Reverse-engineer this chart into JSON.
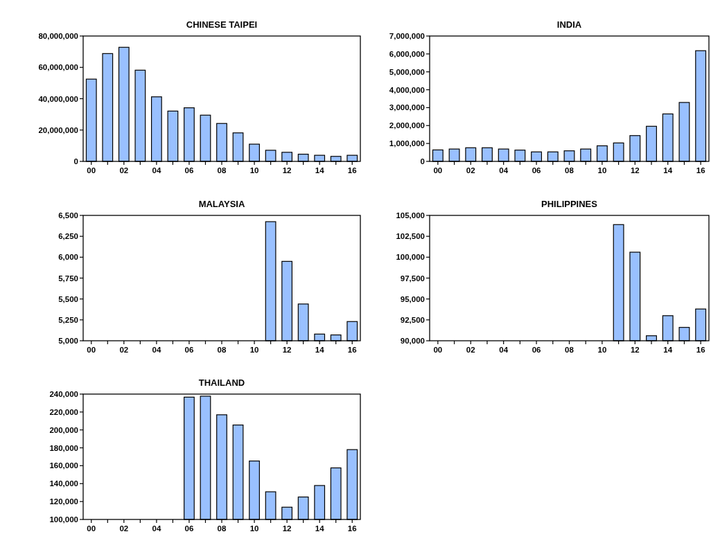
{
  "chart_data": [
    {
      "type": "bar",
      "title": "CHINESE TAIPEI",
      "categories": [
        "00",
        null,
        "02",
        null,
        "04",
        null,
        "06",
        null,
        "08",
        null,
        "10",
        null,
        "12",
        null,
        "14",
        null,
        "16"
      ],
      "values": [
        52500000,
        68800000,
        72800000,
        58200000,
        41200000,
        32100000,
        34200000,
        29500000,
        24200000,
        18200000,
        11000000,
        7100000,
        5800000,
        4600000,
        3900000,
        3200000,
        3900000
      ],
      "color": "#99c0ff",
      "ylim": [
        0,
        80000000
      ],
      "yticks": [
        0,
        {
          "value": 20000000,
          "label": "20,000,000"
        },
        {
          "value": 40000000,
          "label": "40,000,000"
        },
        {
          "value": 60000000,
          "label": "60,000,000"
        },
        {
          "value": 80000000,
          "label": "80,000,000"
        }
      ]
    },
    {
      "type": "bar",
      "title": "INDIA",
      "categories": [
        "00",
        null,
        "02",
        null,
        "04",
        null,
        "06",
        null,
        "08",
        null,
        "10",
        null,
        "12",
        null,
        "14",
        null,
        "16"
      ],
      "values": [
        640000,
        690000,
        760000,
        760000,
        690000,
        630000,
        530000,
        530000,
        590000,
        690000,
        870000,
        1030000,
        1440000,
        1960000,
        2650000,
        3290000,
        6180000
      ],
      "color": "#99c0ff",
      "ylim": [
        0,
        7000000
      ],
      "yticks": [
        0,
        {
          "value": 1000000,
          "label": "1,000,000"
        },
        {
          "value": 2000000,
          "label": "2,000,000"
        },
        {
          "value": 3000000,
          "label": "3,000,000"
        },
        {
          "value": 4000000,
          "label": "4,000,000"
        },
        {
          "value": 5000000,
          "label": "5,000,000"
        },
        {
          "value": 6000000,
          "label": "6,000,000"
        },
        {
          "value": 7000000,
          "label": "7,000,000"
        }
      ]
    },
    {
      "type": "bar",
      "title": "MALAYSIA",
      "categories": [
        "00",
        null,
        "02",
        null,
        "04",
        null,
        "06",
        null,
        "08",
        null,
        "10",
        null,
        "12",
        null,
        "14",
        null,
        "16"
      ],
      "values": [
        null,
        null,
        null,
        null,
        null,
        null,
        null,
        null,
        null,
        null,
        null,
        6425,
        5950,
        5440,
        5080,
        5070,
        5230
      ],
      "color": "#99c0ff",
      "ylim": [
        5000,
        6500
      ],
      "yticks": [
        {
          "value": 5000,
          "label": "5,000"
        },
        {
          "value": 5250,
          "label": "5,250"
        },
        {
          "value": 5500,
          "label": "5,500"
        },
        {
          "value": 5750,
          "label": "5,750"
        },
        {
          "value": 6000,
          "label": "6,000"
        },
        {
          "value": 6250,
          "label": "6,250"
        },
        {
          "value": 6500,
          "label": "6,500"
        }
      ]
    },
    {
      "type": "bar",
      "title": "PHILIPPINES",
      "categories": [
        "00",
        null,
        "02",
        null,
        "04",
        null,
        "06",
        null,
        "08",
        null,
        "10",
        null,
        "12",
        null,
        "14",
        null,
        "16"
      ],
      "values": [
        null,
        null,
        null,
        null,
        null,
        null,
        null,
        null,
        null,
        null,
        null,
        103900,
        100600,
        90600,
        93000,
        91600,
        93800
      ],
      "color": "#99c0ff",
      "ylim": [
        90000,
        105000
      ],
      "yticks": [
        {
          "value": 90000,
          "label": "90,000"
        },
        {
          "value": 92500,
          "label": "92,500"
        },
        {
          "value": 95000,
          "label": "95,000"
        },
        {
          "value": 97500,
          "label": "97,500"
        },
        {
          "value": 100000,
          "label": "100,000"
        },
        {
          "value": 102500,
          "label": "102,500"
        },
        {
          "value": 105000,
          "label": "105,000"
        }
      ]
    },
    {
      "type": "bar",
      "title": "THAILAND",
      "categories": [
        "00",
        null,
        "02",
        null,
        "04",
        null,
        "06",
        null,
        "08",
        null,
        "10",
        null,
        "12",
        null,
        "14",
        null,
        "16"
      ],
      "values": [
        null,
        null,
        null,
        null,
        null,
        null,
        236600,
        237700,
        216900,
        205500,
        165300,
        130900,
        113700,
        125100,
        137900,
        157600,
        178000
      ],
      "color": "#99c0ff",
      "ylim": [
        100000,
        240000
      ],
      "yticks": [
        {
          "value": 100000,
          "label": "100,000"
        },
        {
          "value": 120000,
          "label": "120,000"
        },
        {
          "value": 140000,
          "label": "140,000"
        },
        {
          "value": 160000,
          "label": "160,000"
        },
        {
          "value": 180000,
          "label": "180,000"
        },
        {
          "value": 200000,
          "label": "200,000"
        },
        {
          "value": 220000,
          "label": "220,000"
        },
        {
          "value": 240000,
          "label": "240,000"
        }
      ]
    }
  ]
}
